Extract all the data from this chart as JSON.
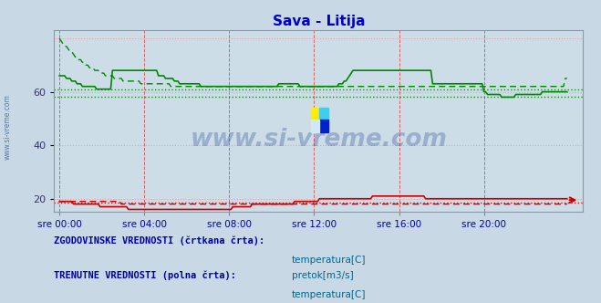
{
  "title": "Sava - Litija",
  "title_color": "#0000cc",
  "plot_bg_color": "#ccdde8",
  "fig_bg_color": "#c8d8e4",
  "ylim": [
    15,
    83
  ],
  "yticks": [
    20,
    40,
    60
  ],
  "x_labels": [
    "sre 00:00",
    "sre 04:00",
    "sre 08:00",
    "sre 12:00",
    "sre 16:00",
    "sre 20:00"
  ],
  "x_positions": [
    0,
    48,
    96,
    144,
    192,
    240
  ],
  "n_points": 288,
  "temp_current_color": "#cc0000",
  "flow_current_color": "#008800",
  "hist_hline_temp": 18.5,
  "hist_hline_flow1": 61.0,
  "hist_hline_flow2": 58.0,
  "watermark_text": "www.si-vreme.com",
  "watermark_color": "#1a3a8a",
  "watermark_alpha": 0.28,
  "legend_text1": "ZGODOVINSKE VREDNOSTI (črtkana črta):",
  "legend_text2": "TRENUTNE VREDNOSTI (polna črta):",
  "legend_label_temp": "temperatura[C]",
  "legend_label_flow": "pretok[m3/s]",
  "legend_text_color": "#0000aa",
  "ylabel_text": "www.si-vreme.com",
  "ylabel_color": "#3366aa",
  "temp_current": [
    19,
    19,
    19,
    19,
    19,
    19,
    19,
    19,
    18,
    18,
    18,
    18,
    18,
    18,
    18,
    18,
    18,
    18,
    18,
    18,
    18,
    18,
    18,
    17,
    17,
    17,
    17,
    17,
    17,
    17,
    17,
    17,
    17,
    17,
    17,
    17,
    17,
    17,
    17,
    16,
    16,
    16,
    16,
    16,
    16,
    16,
    16,
    16,
    16,
    16,
    16,
    16,
    16,
    16,
    16,
    16,
    16,
    16,
    16,
    16,
    16,
    16,
    16,
    16,
    16,
    16,
    16,
    16,
    16,
    16,
    16,
    16,
    16,
    16,
    16,
    16,
    16,
    16,
    16,
    16,
    16,
    16,
    16,
    16,
    16,
    16,
    16,
    16,
    16,
    16,
    16,
    16,
    16,
    16,
    16,
    16,
    16,
    16,
    17,
    17,
    17,
    17,
    17,
    17,
    17,
    17,
    17,
    17,
    17,
    18,
    18,
    18,
    18,
    18,
    18,
    18,
    18,
    18,
    18,
    18,
    18,
    18,
    18,
    18,
    18,
    18,
    18,
    18,
    18,
    18,
    18,
    18,
    18,
    19,
    19,
    19,
    19,
    19,
    19,
    19,
    19,
    19,
    19,
    19,
    19,
    19,
    19,
    20,
    20,
    20,
    20,
    20,
    20,
    20,
    20,
    20,
    20,
    20,
    20,
    20,
    20,
    20,
    20,
    20,
    20,
    20,
    20,
    20,
    20,
    20,
    20,
    20,
    20,
    20,
    20,
    20,
    20,
    21,
    21,
    21,
    21,
    21,
    21,
    21,
    21,
    21,
    21,
    21,
    21,
    21,
    21,
    21,
    21,
    21,
    21,
    21,
    21,
    21,
    21,
    21,
    21,
    21,
    21,
    21,
    21,
    21,
    21,
    20,
    20,
    20,
    20,
    20,
    20,
    20,
    20,
    20,
    20,
    20,
    20,
    20,
    20,
    20,
    20,
    20,
    20,
    20,
    20,
    20,
    20,
    20,
    20,
    20,
    20,
    20,
    20,
    20,
    20,
    20,
    20,
    20,
    20,
    20,
    20,
    20,
    20,
    20,
    20,
    20,
    20,
    20,
    20,
    20,
    20,
    20,
    20,
    20,
    20,
    20,
    20,
    20,
    20,
    20,
    20,
    20,
    20,
    20,
    20,
    20,
    20,
    20,
    20,
    20,
    20,
    20,
    20,
    20,
    20,
    20,
    20,
    20,
    20,
    20,
    20,
    20,
    20,
    20,
    20,
    20
  ],
  "flow_current": [
    66,
    66,
    66,
    66,
    65,
    65,
    65,
    64,
    64,
    64,
    63,
    63,
    63,
    62,
    62,
    62,
    62,
    62,
    62,
    62,
    62,
    61,
    61,
    61,
    61,
    61,
    61,
    61,
    61,
    61,
    68,
    68,
    68,
    68,
    68,
    68,
    68,
    68,
    68,
    68,
    68,
    68,
    68,
    68,
    68,
    68,
    68,
    68,
    68,
    68,
    68,
    68,
    68,
    68,
    68,
    68,
    66,
    66,
    66,
    66,
    65,
    65,
    65,
    65,
    65,
    64,
    64,
    64,
    63,
    63,
    63,
    63,
    63,
    63,
    63,
    63,
    63,
    63,
    63,
    63,
    62,
    62,
    62,
    62,
    62,
    62,
    62,
    62,
    62,
    62,
    62,
    62,
    62,
    62,
    62,
    62,
    62,
    62,
    62,
    62,
    62,
    62,
    62,
    62,
    62,
    62,
    62,
    62,
    62,
    62,
    62,
    62,
    62,
    62,
    62,
    62,
    62,
    62,
    62,
    62,
    62,
    62,
    62,
    62,
    63,
    63,
    63,
    63,
    63,
    63,
    63,
    63,
    63,
    63,
    63,
    63,
    62,
    62,
    62,
    62,
    62,
    62,
    62,
    62,
    62,
    62,
    62,
    62,
    62,
    62,
    62,
    62,
    62,
    62,
    62,
    62,
    62,
    62,
    63,
    63,
    63,
    64,
    64,
    65,
    66,
    67,
    68,
    68,
    68,
    68,
    68,
    68,
    68,
    68,
    68,
    68,
    68,
    68,
    68,
    68,
    68,
    68,
    68,
    68,
    68,
    68,
    68,
    68,
    68,
    68,
    68,
    68,
    68,
    68,
    68,
    68,
    68,
    68,
    68,
    68,
    68,
    68,
    68,
    68,
    68,
    68,
    68,
    68,
    68,
    68,
    68,
    63,
    63,
    63,
    63,
    63,
    63,
    63,
    63,
    63,
    63,
    63,
    63,
    63,
    63,
    63,
    63,
    63,
    63,
    63,
    63,
    63,
    63,
    63,
    63,
    63,
    63,
    63,
    63,
    63,
    60,
    60,
    59,
    59,
    59,
    59,
    59,
    59,
    59,
    59,
    58,
    58,
    58,
    58,
    58,
    58,
    58,
    58,
    59,
    59,
    59,
    59,
    59,
    59,
    59,
    59,
    59,
    59,
    59,
    59,
    59,
    59,
    59,
    60,
    60,
    60,
    60,
    60,
    60,
    60,
    60,
    60,
    60,
    60,
    60,
    60,
    60,
    60
  ],
  "temp_hist": [
    19,
    19,
    19,
    19,
    19,
    19,
    19,
    19,
    19,
    19,
    19,
    19,
    19,
    19,
    19,
    19,
    19,
    19,
    19,
    19,
    19,
    19,
    19,
    19,
    19,
    19,
    19,
    19,
    19,
    19,
    19,
    19,
    19,
    19,
    19,
    18,
    18,
    18,
    18,
    18,
    18,
    18,
    18,
    18,
    18,
    18,
    18,
    18,
    18,
    18,
    18,
    18,
    18,
    18,
    18,
    18,
    18,
    18,
    18,
    18,
    18,
    18,
    18,
    18,
    18,
    18,
    18,
    18,
    18,
    18,
    18,
    18,
    18,
    18,
    18,
    18,
    18,
    18,
    18,
    18,
    18,
    18,
    18,
    18,
    18,
    18,
    18,
    18,
    18,
    18,
    18,
    18,
    18,
    18,
    18,
    18,
    18,
    18,
    18,
    18,
    18,
    18,
    18,
    18,
    18,
    18,
    18,
    18,
    18,
    18,
    18,
    18,
    18,
    18,
    18,
    18,
    18,
    18,
    18,
    18,
    18,
    18,
    18,
    18,
    18,
    18,
    18,
    18,
    18,
    18,
    18,
    18,
    18,
    18,
    18,
    18,
    18,
    18,
    18,
    18,
    18,
    18,
    18,
    18,
    18,
    18,
    18,
    18,
    18,
    18,
    18,
    18,
    18,
    18,
    18,
    18,
    18,
    18,
    18,
    18,
    18,
    18,
    18,
    18,
    18,
    18,
    18,
    18,
    18,
    18,
    18,
    18,
    18,
    18,
    18,
    18,
    18,
    18,
    18,
    18,
    18,
    18,
    18,
    18,
    18,
    18,
    18,
    18,
    18,
    18,
    18,
    18,
    18,
    18,
    18,
    18,
    18,
    18,
    18,
    18,
    18,
    18,
    18,
    18,
    18,
    18,
    18,
    18,
    18,
    18,
    18,
    18,
    18,
    18,
    18,
    18,
    18,
    18,
    18,
    18,
    18,
    18,
    18,
    18,
    18,
    18,
    18,
    18,
    18,
    18,
    18,
    18,
    18,
    18,
    18,
    18,
    18,
    18,
    18,
    18,
    18,
    18,
    18,
    18,
    18,
    18,
    18,
    18,
    18,
    18,
    18,
    18,
    18,
    18,
    18,
    18,
    18,
    18,
    18,
    18,
    18,
    18,
    18,
    18,
    18,
    18,
    18,
    18,
    18,
    18,
    18,
    18,
    18,
    18,
    18,
    18,
    18,
    18,
    18,
    18,
    18,
    18,
    18,
    18,
    18,
    18,
    18,
    18
  ],
  "flow_hist": [
    80,
    79,
    78,
    77,
    77,
    76,
    75,
    75,
    74,
    73,
    73,
    72,
    72,
    71,
    71,
    70,
    70,
    69,
    69,
    69,
    68,
    68,
    68,
    67,
    67,
    67,
    66,
    66,
    66,
    66,
    66,
    65,
    65,
    65,
    65,
    65,
    64,
    64,
    64,
    64,
    64,
    64,
    64,
    64,
    64,
    64,
    63,
    63,
    63,
    63,
    63,
    63,
    63,
    63,
    63,
    63,
    63,
    63,
    63,
    63,
    63,
    63,
    63,
    62,
    62,
    62,
    62,
    62,
    62,
    62,
    62,
    62,
    62,
    62,
    62,
    62,
    62,
    62,
    62,
    62,
    62,
    62,
    62,
    62,
    62,
    62,
    62,
    62,
    62,
    62,
    62,
    62,
    62,
    62,
    62,
    62,
    62,
    62,
    62,
    62,
    62,
    62,
    62,
    62,
    62,
    62,
    62,
    62,
    62,
    62,
    62,
    62,
    62,
    62,
    62,
    62,
    62,
    62,
    62,
    62,
    62,
    62,
    62,
    62,
    62,
    62,
    62,
    62,
    62,
    62,
    62,
    62,
    62,
    62,
    62,
    62,
    62,
    62,
    62,
    62,
    62,
    62,
    62,
    62,
    62,
    62,
    62,
    62,
    62,
    62,
    62,
    62,
    62,
    62,
    62,
    62,
    62,
    62,
    62,
    62,
    62,
    62,
    62,
    62,
    62,
    62,
    62,
    62,
    62,
    62,
    62,
    62,
    62,
    62,
    62,
    62,
    62,
    62,
    62,
    62,
    62,
    62,
    62,
    62,
    62,
    62,
    62,
    62,
    62,
    62,
    62,
    62,
    62,
    62,
    62,
    62,
    62,
    62,
    62,
    62,
    62,
    62,
    62,
    62,
    62,
    62,
    62,
    62,
    62,
    62,
    62,
    62,
    62,
    62,
    62,
    62,
    62,
    62,
    62,
    62,
    62,
    62,
    62,
    62,
    62,
    62,
    62,
    62,
    62,
    62,
    62,
    62,
    62,
    62,
    62,
    62,
    62,
    62,
    62,
    62,
    62,
    62,
    62,
    62,
    62,
    62,
    62,
    62,
    62,
    62,
    62,
    62,
    62,
    62,
    62,
    62,
    62,
    62,
    62,
    62,
    62,
    62,
    62,
    62,
    62,
    62,
    62,
    62,
    62,
    62,
    62,
    62,
    62,
    62,
    62,
    62,
    62,
    62,
    62,
    62,
    62,
    62,
    62,
    62,
    62,
    62,
    65,
    65
  ]
}
